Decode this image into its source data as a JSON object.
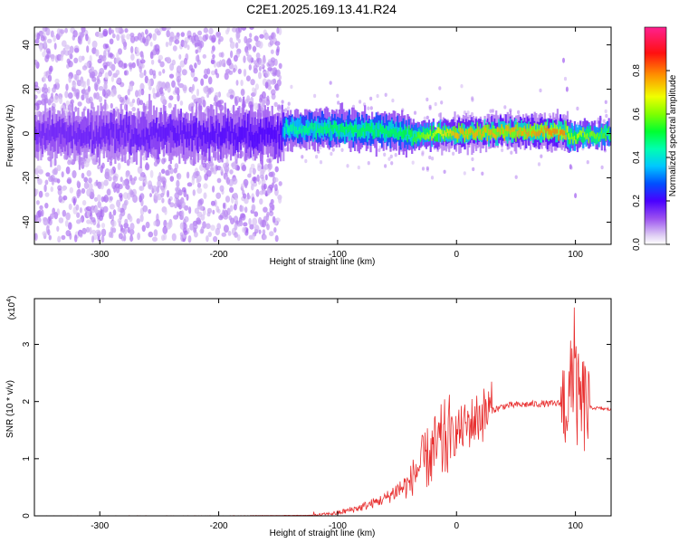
{
  "title": "C2E1.2025.169.13.41.R24",
  "chart_data": [
    {
      "type": "heatmap",
      "xlabel": "Height of straight line (km)",
      "ylabel": "Frequency (Hz)",
      "xlim": [
        -355,
        130
      ],
      "ylim": [
        -50,
        48
      ],
      "xticks": [
        -300,
        -200,
        -100,
        0,
        100
      ],
      "yticks": [
        -40,
        -20,
        0,
        20,
        40
      ],
      "colorbar": {
        "label": "Normalized spectral amplitude",
        "range": [
          0.0,
          1.0
        ],
        "ticks": [
          0.0,
          0.2,
          0.4,
          0.6,
          0.8
        ],
        "colors": [
          "#ffffff",
          "#d8c4f0",
          "#8a3cf0",
          "#3c00ff",
          "#0066ff",
          "#00e0ff",
          "#00ff66",
          "#80ff00",
          "#ffff00",
          "#ff8000",
          "#ff0000",
          "#ff1a8c"
        ]
      },
      "noise_region": {
        "x": [
          -355,
          -148
        ],
        "spread_hz": 48
      },
      "signal_band": [
        {
          "x": -355,
          "center": 0,
          "halfwidth": 11,
          "amplitude": 0.16
        },
        {
          "x": -148,
          "center": 0,
          "halfwidth": 11,
          "amplitude": 0.2
        },
        {
          "x": -145,
          "center": 2,
          "halfwidth": 6,
          "amplitude": 0.45
        },
        {
          "x": -100,
          "center": 2,
          "halfwidth": 6,
          "amplitude": 0.5
        },
        {
          "x": -50,
          "center": 1,
          "halfwidth": 6,
          "amplitude": 0.5
        },
        {
          "x": -35,
          "center": -2,
          "halfwidth": 5,
          "amplitude": 0.55
        },
        {
          "x": -30,
          "center": 0,
          "halfwidth": 4,
          "amplitude": 0.6
        },
        {
          "x": 0,
          "center": 0,
          "halfwidth": 4,
          "amplitude": 0.75
        },
        {
          "x": 50,
          "center": 1,
          "halfwidth": 4,
          "amplitude": 0.75
        },
        {
          "x": 90,
          "center": 1,
          "halfwidth": 4,
          "amplitude": 0.8
        },
        {
          "x": 95,
          "center": -2,
          "halfwidth": 5,
          "amplitude": 0.6
        },
        {
          "x": 100,
          "center": -1,
          "halfwidth": 4,
          "amplitude": 0.65
        },
        {
          "x": 130,
          "center": 0,
          "halfwidth": 4,
          "amplitude": 0.55
        }
      ]
    },
    {
      "type": "line",
      "xlabel": "Height of straight line (km)",
      "ylabel": "SNR (10 * v/v)",
      "y_multiplier_label": "(x10",
      "y_multiplier_exp": "4",
      "xlim": [
        -355,
        130
      ],
      "ylim": [
        0,
        3.8
      ],
      "xticks": [
        -300,
        -200,
        -100,
        0,
        100
      ],
      "yticks": [
        0,
        1,
        2,
        3
      ],
      "series": [
        {
          "color": "#e83030",
          "x": [
            -355,
            -200,
            -120,
            -100,
            -80,
            -60,
            -50,
            -40,
            -35,
            -30,
            -20,
            -10,
            0,
            10,
            20,
            30,
            40,
            50,
            60,
            70,
            80,
            90,
            95,
            98,
            100,
            103,
            106,
            110,
            120,
            130
          ],
          "y": [
            0.0,
            0.0,
            0.01,
            0.05,
            0.15,
            0.3,
            0.45,
            0.55,
            0.75,
            0.9,
            1.1,
            1.3,
            1.45,
            1.6,
            1.75,
            1.85,
            1.92,
            1.94,
            1.95,
            1.96,
            1.96,
            1.97,
            2.0,
            2.6,
            2.2,
            1.9,
            1.95,
            1.9,
            1.88,
            1.86
          ]
        }
      ]
    }
  ]
}
